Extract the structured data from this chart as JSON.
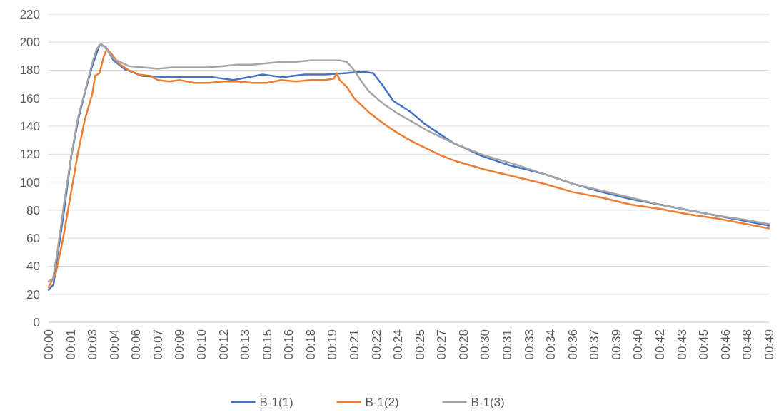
{
  "chart_data": {
    "type": "line",
    "xlim": [
      0,
      49.5
    ],
    "xticks": [
      {
        "value": 0,
        "label": "00:00"
      },
      {
        "value": 1.5,
        "label": "00:01"
      },
      {
        "value": 3,
        "label": "00:03"
      },
      {
        "value": 4.5,
        "label": "00:04"
      },
      {
        "value": 6,
        "label": "00:06"
      },
      {
        "value": 7.5,
        "label": "00:07"
      },
      {
        "value": 9,
        "label": "00:09"
      },
      {
        "value": 10.5,
        "label": "00:10"
      },
      {
        "value": 12,
        "label": "00:12"
      },
      {
        "value": 13.5,
        "label": "00:13"
      },
      {
        "value": 15,
        "label": "00:15"
      },
      {
        "value": 16.5,
        "label": "00:16"
      },
      {
        "value": 18,
        "label": "00:18"
      },
      {
        "value": 19.5,
        "label": "00:19"
      },
      {
        "value": 21,
        "label": "00:21"
      },
      {
        "value": 22.5,
        "label": "00:22"
      },
      {
        "value": 24,
        "label": "00:24"
      },
      {
        "value": 25.5,
        "label": "00:25"
      },
      {
        "value": 27,
        "label": "00:27"
      },
      {
        "value": 28.5,
        "label": "00:28"
      },
      {
        "value": 30,
        "label": "00:30"
      },
      {
        "value": 31.5,
        "label": "00:31"
      },
      {
        "value": 33,
        "label": "00:33"
      },
      {
        "value": 34.5,
        "label": "00:34"
      },
      {
        "value": 36,
        "label": "00:36"
      },
      {
        "value": 37.5,
        "label": "00:37"
      },
      {
        "value": 39,
        "label": "00:39"
      },
      {
        "value": 40.5,
        "label": "00:40"
      },
      {
        "value": 42,
        "label": "00:42"
      },
      {
        "value": 43.5,
        "label": "00:43"
      },
      {
        "value": 45,
        "label": "00:45"
      },
      {
        "value": 46.5,
        "label": "00:46"
      },
      {
        "value": 48,
        "label": "00:48"
      },
      {
        "value": 49.5,
        "label": "00:49"
      }
    ],
    "ylim": [
      0,
      220
    ],
    "yticks": [
      0,
      20,
      40,
      60,
      80,
      100,
      120,
      140,
      160,
      180,
      200,
      220
    ],
    "grid": "y",
    "legend": "bottom",
    "line_style": "solid",
    "marker": "none",
    "series": [
      {
        "name": "B-1(1)",
        "color": "#4472c4",
        "x": [
          0,
          0.34,
          0.58,
          1.07,
          1.55,
          2.04,
          2.52,
          3,
          3.5,
          3.9,
          4.47,
          5.2,
          6.4,
          8.35,
          9.8,
          11.3,
          12.7,
          14.2,
          14.7,
          16.1,
          17.6,
          19,
          20.5,
          21.5,
          22.3,
          22.9,
          23.7,
          24.9,
          25.8,
          26.8,
          27.8,
          28.7,
          29.7,
          31.7,
          34,
          36,
          38,
          40,
          42,
          44,
          46,
          48,
          49.5
        ],
        "values": [
          23,
          27,
          45,
          80,
          118,
          145,
          165,
          183,
          198,
          197,
          187,
          181,
          176,
          175,
          175,
          175,
          173,
          176,
          177,
          175,
          177,
          177,
          178,
          179,
          178,
          170,
          158,
          150,
          142,
          135,
          128,
          124,
          119,
          112,
          106,
          99,
          93,
          88,
          84,
          80,
          76,
          72,
          69
        ]
      },
      {
        "name": "B-1(2)",
        "color": "#ed7d31",
        "x": [
          0,
          0.5,
          1,
          1.5,
          2,
          2.5,
          3,
          3.2,
          3.5,
          3.8,
          4,
          4.3,
          4.8,
          5.5,
          6.2,
          7,
          7.5,
          8.3,
          9,
          10,
          11,
          12,
          13,
          14,
          15,
          16,
          17,
          18,
          19,
          19.6,
          19.8,
          20,
          20.5,
          21,
          22,
          23,
          24,
          25,
          26,
          27,
          28,
          29,
          30,
          32,
          34,
          36,
          38,
          40,
          42,
          44,
          46,
          48,
          49.5
        ],
        "values": [
          25,
          35,
          60,
          90,
          120,
          145,
          163,
          176,
          178,
          190,
          195,
          192,
          185,
          180,
          177,
          176,
          173,
          172,
          173,
          171,
          171,
          172,
          172,
          171,
          171,
          173,
          172,
          173,
          173,
          174,
          178,
          173,
          168,
          160,
          150,
          142,
          135,
          129,
          124,
          119,
          115,
          112,
          109,
          104,
          99,
          93,
          89,
          84,
          81,
          77,
          74,
          70,
          67
        ]
      },
      {
        "name": "B-1(3)",
        "color": "#a5a5a5",
        "x": [
          0,
          0.3,
          0.6,
          1,
          1.5,
          2,
          2.5,
          3,
          3.3,
          3.6,
          3.9,
          4.5,
          5.5,
          6.5,
          7.5,
          8.5,
          10,
          11,
          12,
          13,
          14,
          15,
          16,
          17,
          18,
          19,
          20,
          20.5,
          21,
          21.5,
          22,
          23,
          24,
          25,
          26,
          27,
          28,
          29,
          30,
          32,
          34,
          36,
          38,
          40,
          42,
          44,
          46,
          48,
          49.5
        ],
        "values": [
          29,
          31,
          50,
          80,
          115,
          145,
          165,
          185,
          195,
          199,
          196,
          188,
          183,
          182,
          181,
          182,
          182,
          182,
          183,
          184,
          184,
          185,
          186,
          186,
          187,
          187,
          187,
          186,
          180,
          172,
          165,
          156,
          149,
          143,
          137,
          132,
          127,
          123,
          119,
          113,
          106,
          99,
          94,
          89,
          84,
          80,
          76,
          73,
          70
        ]
      }
    ]
  }
}
